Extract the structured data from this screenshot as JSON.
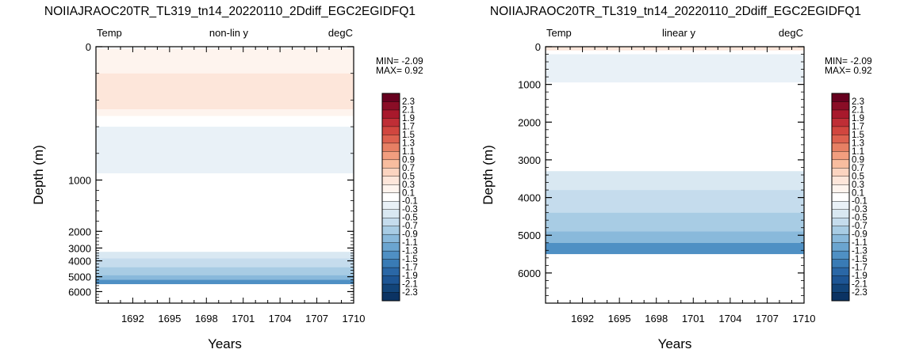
{
  "chart_data": [
    {
      "type": "heatmap",
      "title": "NOIIAJRAOC20TR_TL319_tn14_20220110_2Ddiff_EGC2EGIDFQ1",
      "left_label": "Temp",
      "center_label": "non-lin y",
      "right_label": "degC",
      "xlabel": "Years",
      "ylabel": "Depth (m)",
      "x_ticks": [
        "1692",
        "1695",
        "1698",
        "1701",
        "1704",
        "1707",
        "1710"
      ],
      "y_ticks": [
        "0",
        "1000",
        "2000",
        "3000",
        "4000",
        "5000",
        "6000"
      ],
      "y_scale": "non-linear",
      "xlim": [
        1689,
        1710
      ],
      "ylim": [
        0,
        6800
      ],
      "min_label": "MIN= -2.09",
      "max_label": "MAX=  0.92",
      "min": -2.09,
      "max": 0.92,
      "bands": [
        {
          "from": 0,
          "to": 15,
          "value": 0.0
        },
        {
          "from": 15,
          "to": 200,
          "value": 0.2
        },
        {
          "from": 200,
          "to": 470,
          "value": 0.4
        },
        {
          "from": 470,
          "to": 520,
          "value": 0.2
        },
        {
          "from": 520,
          "to": 600,
          "value": 0.0
        },
        {
          "from": 600,
          "to": 950,
          "value": -0.2
        },
        {
          "from": 950,
          "to": 3300,
          "value": -0.1
        },
        {
          "from": 3300,
          "to": 3800,
          "value": -0.4
        },
        {
          "from": 3800,
          "to": 4400,
          "value": -0.6
        },
        {
          "from": 4400,
          "to": 4900,
          "value": -0.8
        },
        {
          "from": 4900,
          "to": 5200,
          "value": -1.0
        },
        {
          "from": 5200,
          "to": 5500,
          "value": -1.4
        }
      ]
    },
    {
      "type": "heatmap",
      "title": "NOIIAJRAOC20TR_TL319_tn14_20220110_2Ddiff_EGC2EGIDFQ1",
      "left_label": "Temp",
      "center_label": "linear y",
      "right_label": "degC",
      "xlabel": "Years",
      "ylabel": "Depth (m)",
      "x_ticks": [
        "1692",
        "1695",
        "1698",
        "1701",
        "1704",
        "1707",
        "1710"
      ],
      "y_ticks": [
        "0",
        "1000",
        "2000",
        "3000",
        "4000",
        "5000",
        "6000"
      ],
      "y_scale": "linear",
      "xlim": [
        1689,
        1710
      ],
      "ylim": [
        0,
        6800
      ],
      "min_label": "MIN= -2.09",
      "max_label": "MAX=  0.92",
      "min": -2.09,
      "max": 0.92,
      "bands": [
        {
          "from": 0,
          "to": 100,
          "value": 0.4
        },
        {
          "from": 100,
          "to": 200,
          "value": 0.0
        },
        {
          "from": 200,
          "to": 950,
          "value": -0.2
        },
        {
          "from": 950,
          "to": 3300,
          "value": -0.1
        },
        {
          "from": 3300,
          "to": 3800,
          "value": -0.4
        },
        {
          "from": 3800,
          "to": 4400,
          "value": -0.6
        },
        {
          "from": 4400,
          "to": 4900,
          "value": -0.8
        },
        {
          "from": 4900,
          "to": 5200,
          "value": -1.0
        },
        {
          "from": 5200,
          "to": 5500,
          "value": -1.4
        }
      ]
    }
  ],
  "colorbar": {
    "labels": [
      "2.3",
      "2.1",
      "1.9",
      "1.7",
      "1.5",
      "1.3",
      "1.1",
      "0.9",
      "0.7",
      "0.5",
      "0.3",
      "0.1",
      "-0.1",
      "-0.3",
      "-0.5",
      "-0.7",
      "-0.9",
      "-1.1",
      "-1.3",
      "-1.5",
      "-1.7",
      "-1.9",
      "-2.1",
      "-2.3"
    ],
    "colors": [
      "#67001f",
      "#8a0d26",
      "#a8192c",
      "#bf2e36",
      "#d1463f",
      "#dd614f",
      "#e78064",
      "#f29e7f",
      "#f8bd9f",
      "#fbd4c0",
      "#fde6da",
      "#fef4ee",
      "#ffffff",
      "#e9f1f7",
      "#d9e8f2",
      "#c5dced",
      "#a8cce4",
      "#89b9db",
      "#6ba5d0",
      "#4f90c4",
      "#397bb5",
      "#2a67a6",
      "#1d5594",
      "#124479",
      "#0b3363"
    ]
  }
}
